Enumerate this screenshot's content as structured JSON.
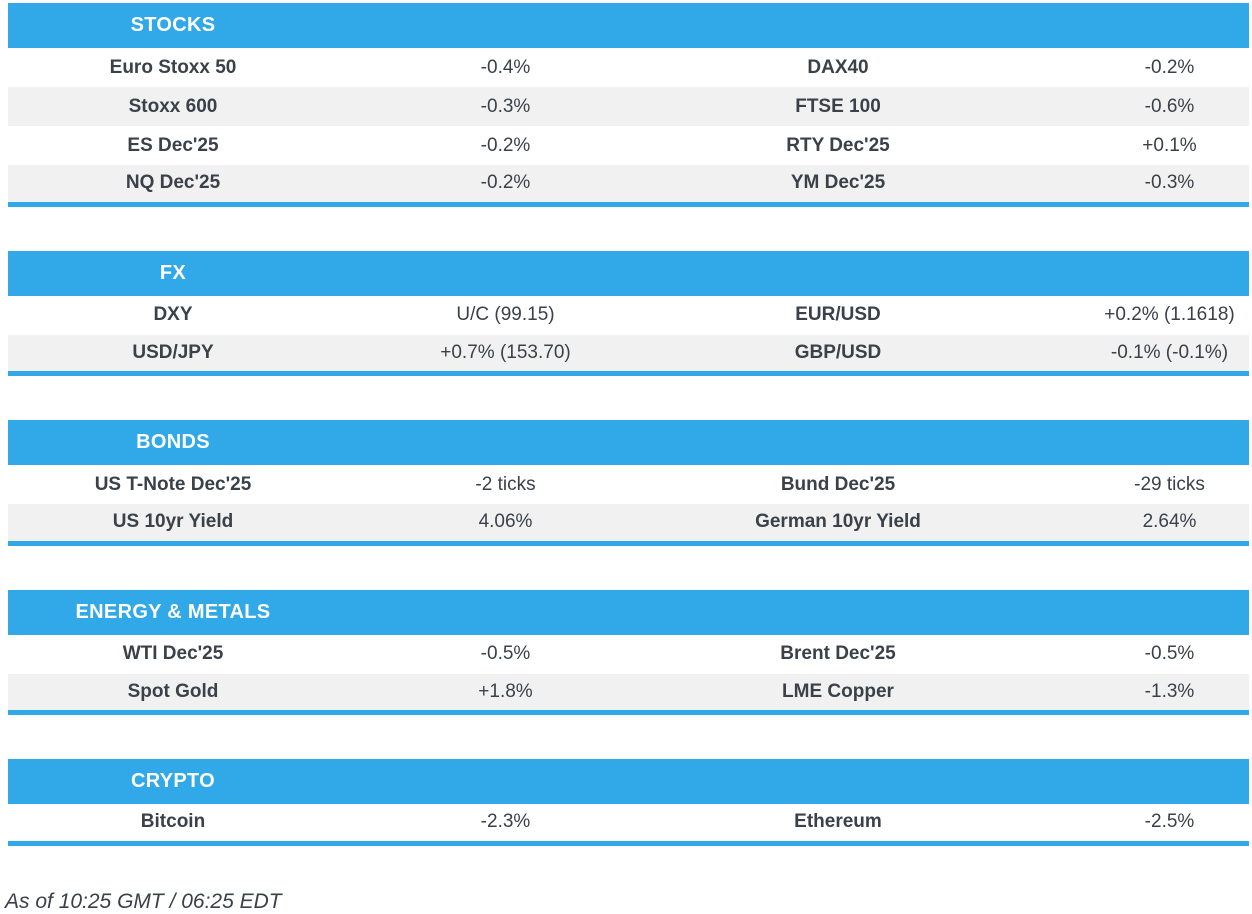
{
  "colors": {
    "accent": "#31A8E8",
    "stripe": "#F1F1F2",
    "text": "#3A4149",
    "header_text": "#FFFFFF",
    "background": "#FFFFFF"
  },
  "sections": [
    {
      "title": "STOCKS",
      "rows": [
        {
          "cells": [
            "Euro Stoxx 50",
            "-0.4%",
            "DAX40",
            "-0.2%"
          ]
        },
        {
          "cells": [
            "Stoxx 600",
            "-0.3%",
            "FTSE 100",
            "-0.6%"
          ]
        },
        {
          "cells": [
            "ES Dec'25",
            "-0.2%",
            "RTY Dec'25",
            "+0.1%"
          ]
        },
        {
          "cells": [
            "NQ Dec'25",
            "-0.2%",
            "YM Dec'25",
            "-0.3%"
          ]
        }
      ]
    },
    {
      "title": "FX",
      "rows": [
        {
          "cells": [
            "DXY",
            "U/C (99.15)",
            "EUR/USD",
            "+0.2% (1.1618)"
          ]
        },
        {
          "cells": [
            "USD/JPY",
            "+0.7% (153.70)",
            "GBP/USD",
            "-0.1% (-0.1%)"
          ]
        }
      ]
    },
    {
      "title": "BONDS",
      "rows": [
        {
          "cells": [
            "US T-Note Dec'25",
            "-2 ticks",
            "Bund Dec'25",
            "-29 ticks"
          ]
        },
        {
          "cells": [
            "US 10yr Yield",
            "4.06%",
            "German 10yr Yield",
            "2.64%"
          ]
        }
      ]
    },
    {
      "title": "ENERGY & METALS",
      "rows": [
        {
          "cells": [
            "WTI Dec'25",
            "-0.5%",
            "Brent Dec'25",
            "-0.5%"
          ]
        },
        {
          "cells": [
            "Spot Gold",
            "+1.8%",
            "LME Copper",
            "-1.3%"
          ]
        }
      ]
    },
    {
      "title": "CRYPTO",
      "rows": [
        {
          "cells": [
            "Bitcoin",
            "-2.3%",
            "Ethereum",
            "-2.5%"
          ]
        }
      ]
    }
  ],
  "footer": {
    "as_of": "As of 10:25 GMT / 06:25 EDT"
  }
}
